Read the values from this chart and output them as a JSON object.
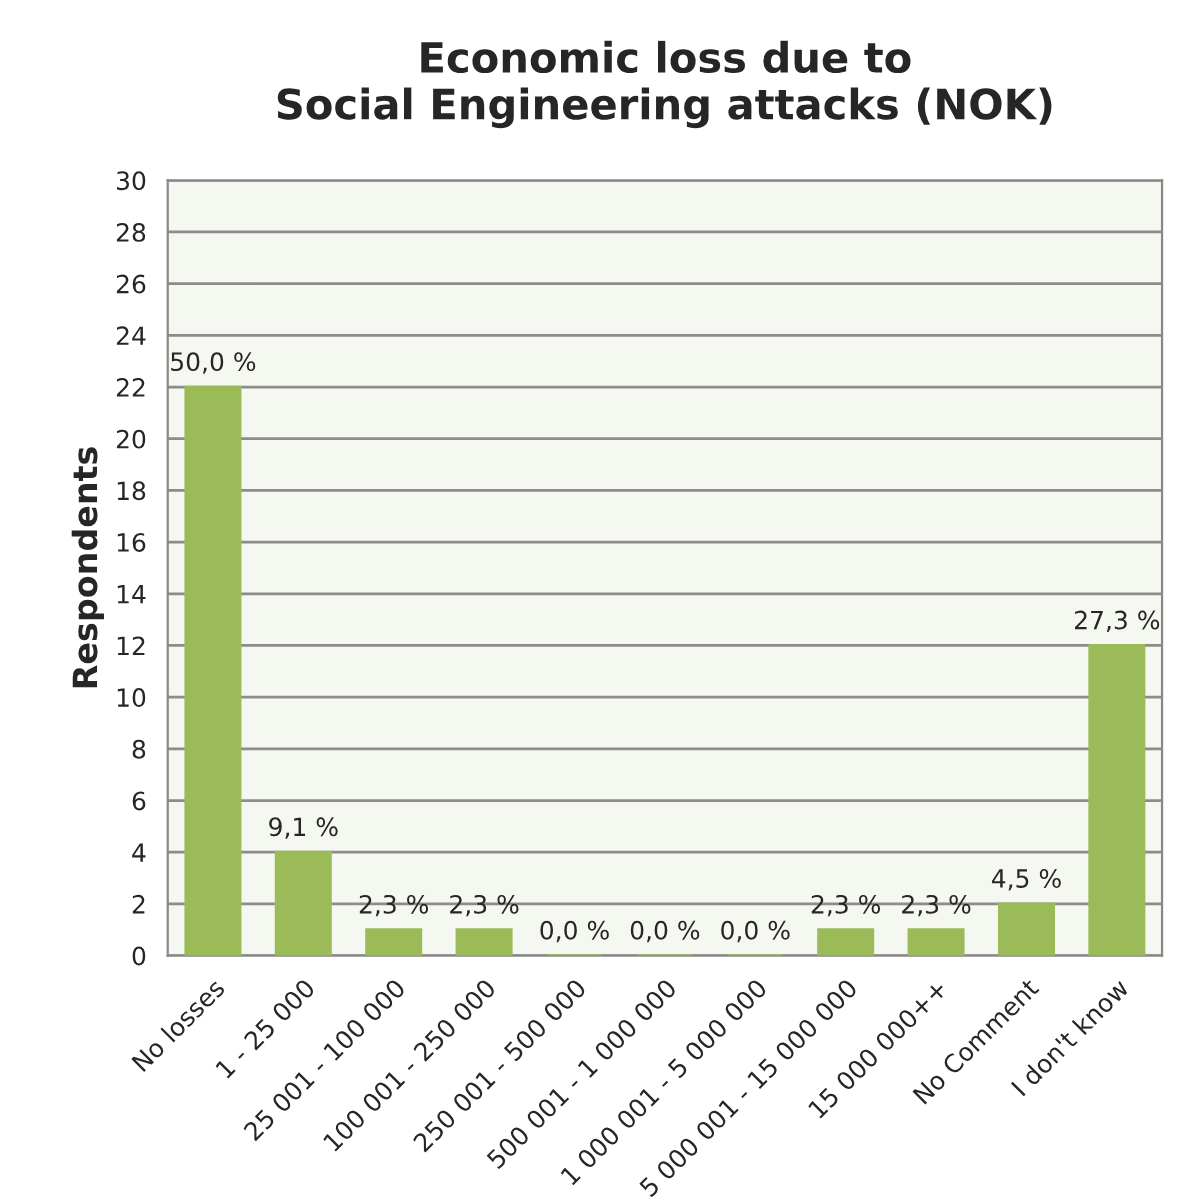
{
  "chart_data": {
    "type": "bar",
    "title": "Economic loss due to\nSocial Engineering attacks (NOK)",
    "ylabel": "Respondents",
    "categories": [
      "No losses",
      "1 - 25 000",
      "25 001 - 100 000",
      "100 001 - 250 000",
      "250 001 - 500 000",
      "500 001 - 1 000 000",
      "1 000 001 - 5 000 000",
      "5 000 001 - 15 000 000",
      "15 000 000++",
      "No Comment",
      "I don't know"
    ],
    "values": [
      22,
      4,
      1,
      1,
      0,
      0,
      0,
      1,
      1,
      2,
      12
    ],
    "annotations": [
      {
        "text": "50,0 %",
        "x": "No losses",
        "y": 22
      },
      {
        "text": "9,1 %",
        "x": "1 - 25 000",
        "y": 4
      },
      {
        "text": "2,3 %",
        "x": "25 001 - 100 000",
        "y": 1
      },
      {
        "text": "2,3 %",
        "x": "100 001 - 250 000",
        "y": 1
      },
      {
        "text": "0,0 %",
        "x": "250 001 - 500 000",
        "y": 0
      },
      {
        "text": "0,0 %",
        "x": "500 001 - 1 000 000",
        "y": 0
      },
      {
        "text": "0,0 %",
        "x": "1 000 001 - 5 000 000",
        "y": 0
      },
      {
        "text": "2,3 %",
        "x": "5 000 001 - 15 000 000",
        "y": 1
      },
      {
        "text": "2,3 %",
        "x": "15 000 000++",
        "y": 1
      },
      {
        "text": "4,5 %",
        "x": "No Comment",
        "y": 2
      },
      {
        "text": "27,3 %",
        "x": "I don't know",
        "y": 12
      }
    ],
    "color": "#9bbb59",
    "ylim": [
      0,
      30
    ],
    "yticks": [
      0,
      2,
      4,
      6,
      8,
      10,
      12,
      14,
      16,
      18,
      20,
      22,
      24,
      26,
      28,
      30
    ],
    "grid": "y"
  }
}
